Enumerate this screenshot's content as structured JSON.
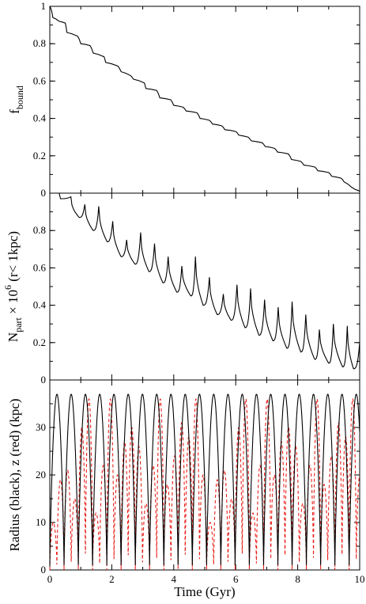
{
  "chart_data": [
    {
      "type": "line",
      "ylabel": "f",
      "ylabel_sub": "bound",
      "xlim": [
        0,
        10
      ],
      "ylim": [
        0,
        1
      ],
      "yticks": [
        "0",
        "0.2",
        "0.4",
        "0.6",
        "0.8",
        "1"
      ],
      "grid": false,
      "series": [
        {
          "color": "#000000",
          "style": "solid",
          "x": [
            0.05,
            0.1,
            0.3,
            0.5,
            0.55,
            0.9,
            1.0,
            1.3,
            1.4,
            1.75,
            1.8,
            2.2,
            2.3,
            2.6,
            2.7,
            3.05,
            3.1,
            3.45,
            3.55,
            3.9,
            4.0,
            4.3,
            4.4,
            4.75,
            4.85,
            5.15,
            5.25,
            5.55,
            5.65,
            6.0,
            6.1,
            6.4,
            6.5,
            6.85,
            6.95,
            7.25,
            7.35,
            7.7,
            7.8,
            8.1,
            8.2,
            8.55,
            8.65,
            9.0,
            9.1,
            9.4,
            9.5,
            9.75,
            9.85,
            10.0
          ],
          "y": [
            0.98,
            0.94,
            0.92,
            0.91,
            0.86,
            0.84,
            0.8,
            0.79,
            0.75,
            0.73,
            0.7,
            0.68,
            0.65,
            0.63,
            0.61,
            0.59,
            0.56,
            0.55,
            0.51,
            0.5,
            0.47,
            0.46,
            0.44,
            0.43,
            0.4,
            0.39,
            0.37,
            0.36,
            0.34,
            0.33,
            0.31,
            0.3,
            0.28,
            0.27,
            0.25,
            0.24,
            0.22,
            0.21,
            0.18,
            0.17,
            0.15,
            0.14,
            0.12,
            0.11,
            0.09,
            0.08,
            0.06,
            0.03,
            0.02,
            0.01
          ]
        }
      ]
    },
    {
      "type": "line",
      "ylabel": "N",
      "ylabel_sub": "part",
      "ylabel_mid": " × 10",
      "ylabel_sup": "6",
      "ylabel_tail": " (r< 1kpc)",
      "xlim": [
        0,
        10
      ],
      "ylim": [
        0,
        1
      ],
      "yticks": [
        "0",
        "0.2",
        "0.4",
        "0.6",
        "0.8"
      ],
      "grid": false,
      "peaks": [
        [
          0.68,
          0.98
        ],
        [
          1.13,
          0.94
        ],
        [
          1.58,
          0.93
        ],
        [
          2.03,
          0.85
        ],
        [
          2.48,
          0.75
        ],
        [
          2.93,
          0.79
        ],
        [
          3.38,
          0.73
        ],
        [
          3.82,
          0.66
        ],
        [
          4.26,
          0.61
        ],
        [
          4.7,
          0.66
        ],
        [
          5.15,
          0.55
        ],
        [
          5.6,
          0.46
        ],
        [
          6.04,
          0.51
        ],
        [
          6.48,
          0.49
        ],
        [
          6.93,
          0.43
        ],
        [
          7.37,
          0.39
        ],
        [
          7.82,
          0.42
        ],
        [
          8.26,
          0.35
        ],
        [
          8.7,
          0.27
        ],
        [
          9.15,
          0.3
        ],
        [
          9.6,
          0.29
        ],
        [
          10.0,
          0.2
        ]
      ],
      "troughs": [
        [
          0.3,
          0.97
        ],
        [
          0.95,
          0.87
        ],
        [
          1.4,
          0.8
        ],
        [
          1.85,
          0.74
        ],
        [
          2.3,
          0.66
        ],
        [
          2.75,
          0.62
        ],
        [
          3.2,
          0.58
        ],
        [
          3.65,
          0.52
        ],
        [
          4.1,
          0.47
        ],
        [
          4.55,
          0.45
        ],
        [
          4.95,
          0.4
        ],
        [
          5.4,
          0.35
        ],
        [
          5.85,
          0.32
        ],
        [
          6.3,
          0.28
        ],
        [
          6.75,
          0.24
        ],
        [
          7.2,
          0.21
        ],
        [
          7.65,
          0.17
        ],
        [
          8.1,
          0.15
        ],
        [
          8.55,
          0.11
        ],
        [
          9.0,
          0.09
        ],
        [
          9.45,
          0.07
        ],
        [
          9.8,
          0.06
        ]
      ],
      "series": [
        {
          "color": "#000000",
          "style": "solid"
        }
      ]
    },
    {
      "type": "line",
      "ylabel": "Radius (black), z (red) (kpc)",
      "xlabel": "Time (Gyr)",
      "xlim": [
        0,
        10
      ],
      "ylim": [
        0,
        40
      ],
      "yticks": [
        "0",
        "10",
        "20",
        "30"
      ],
      "xticks": [
        "0",
        "2",
        "4",
        "6",
        "8",
        "10"
      ],
      "grid": false,
      "radius_period_gyr": 0.46,
      "radius_max_kpc": 37,
      "radius_min_kpc": 1,
      "z_amplitudes_kpc": [
        10,
        19,
        21,
        15,
        30,
        36,
        12,
        22,
        36,
        20,
        27,
        30,
        26,
        14,
        22,
        36,
        18,
        24,
        31,
        28,
        36,
        20
      ],
      "series": [
        {
          "name": "Radius",
          "color": "#000000",
          "style": "solid"
        },
        {
          "name": "z",
          "color": "#e8201a",
          "style": "dashed"
        }
      ]
    }
  ]
}
